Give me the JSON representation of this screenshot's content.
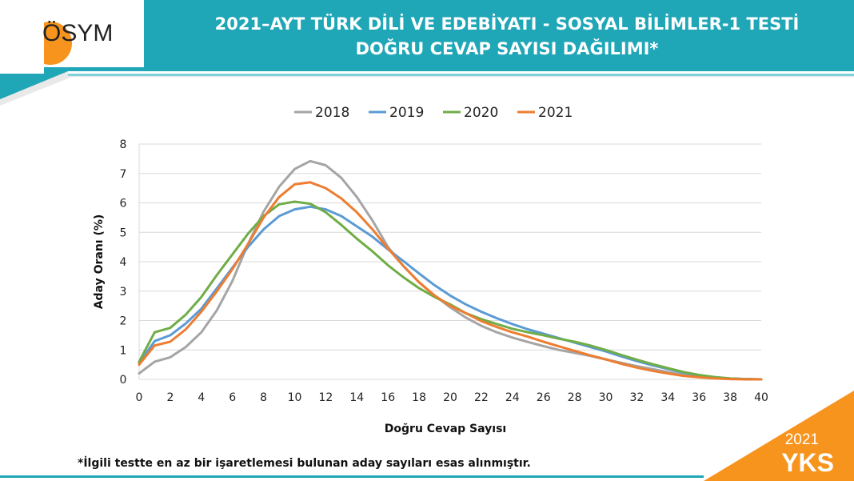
{
  "header": {
    "title_line1": "2021–AYT TÜRK DİLİ VE EDEBİYATI - SOSYAL BİLİMLER-1 TESTİ",
    "title_line2": "DOĞRU CEVAP SAYISI DAĞILIMI*",
    "logo_text": "ÖSYM"
  },
  "footnote": "*İlgili testte en az bir işaretlemesi bulunan aday sayıları esas alınmıştır.",
  "badge": {
    "year": "2021",
    "name": "YKS"
  },
  "colors": {
    "teal": "#1fa6b7",
    "orange": "#f7941d",
    "s2018": "#a5a5a5",
    "s2019": "#5b9bd5",
    "s2020": "#70ad47",
    "s2021": "#ed7d31"
  },
  "chart_data": {
    "type": "line",
    "title": "",
    "xlabel": "Doğru Cevap Sayısı",
    "ylabel": "Aday Oranı (%)",
    "xlim": [
      0,
      40
    ],
    "ylim": [
      0,
      8
    ],
    "x_ticks": [
      0,
      2,
      4,
      6,
      8,
      10,
      12,
      14,
      16,
      18,
      20,
      22,
      24,
      26,
      28,
      30,
      32,
      34,
      36,
      38,
      40
    ],
    "y_ticks": [
      0,
      1,
      2,
      3,
      4,
      5,
      6,
      7,
      8
    ],
    "grid": true,
    "legend_position": "top-center",
    "x": [
      0,
      1,
      2,
      3,
      4,
      5,
      6,
      7,
      8,
      9,
      10,
      11,
      12,
      13,
      14,
      15,
      16,
      17,
      18,
      19,
      20,
      21,
      22,
      23,
      24,
      25,
      26,
      27,
      28,
      29,
      30,
      31,
      32,
      33,
      34,
      35,
      36,
      37,
      38,
      39,
      40
    ],
    "series": [
      {
        "name": "2018",
        "color": "#a5a5a5",
        "values": [
          0.2,
          0.6,
          0.75,
          1.1,
          1.6,
          2.35,
          3.35,
          4.6,
          5.7,
          6.55,
          7.15,
          7.42,
          7.28,
          6.85,
          6.2,
          5.4,
          4.5,
          3.85,
          3.3,
          2.85,
          2.45,
          2.1,
          1.82,
          1.6,
          1.42,
          1.27,
          1.13,
          1.0,
          0.9,
          0.8,
          0.68,
          0.56,
          0.45,
          0.35,
          0.25,
          0.16,
          0.1,
          0.05,
          0.02,
          0.01,
          0.0
        ]
      },
      {
        "name": "2019",
        "color": "#5b9bd5",
        "values": [
          0.55,
          1.3,
          1.5,
          1.9,
          2.4,
          3.1,
          3.8,
          4.5,
          5.1,
          5.55,
          5.78,
          5.87,
          5.78,
          5.55,
          5.2,
          4.85,
          4.42,
          4.02,
          3.6,
          3.2,
          2.85,
          2.55,
          2.3,
          2.08,
          1.88,
          1.7,
          1.55,
          1.4,
          1.25,
          1.1,
          0.95,
          0.78,
          0.62,
          0.48,
          0.35,
          0.23,
          0.14,
          0.07,
          0.03,
          0.01,
          0.0
        ]
      },
      {
        "name": "2020",
        "color": "#70ad47",
        "values": [
          0.6,
          1.6,
          1.75,
          2.2,
          2.8,
          3.55,
          4.25,
          4.95,
          5.55,
          5.95,
          6.04,
          5.97,
          5.68,
          5.25,
          4.78,
          4.35,
          3.88,
          3.47,
          3.1,
          2.8,
          2.55,
          2.25,
          2.05,
          1.88,
          1.72,
          1.6,
          1.5,
          1.38,
          1.28,
          1.15,
          1.0,
          0.83,
          0.67,
          0.52,
          0.38,
          0.25,
          0.15,
          0.08,
          0.03,
          0.01,
          0.0
        ]
      },
      {
        "name": "2021",
        "color": "#ed7d31",
        "values": [
          0.5,
          1.15,
          1.28,
          1.7,
          2.3,
          3.0,
          3.75,
          4.6,
          5.5,
          6.2,
          6.63,
          6.7,
          6.5,
          6.15,
          5.68,
          5.1,
          4.45,
          3.85,
          3.3,
          2.85,
          2.5,
          2.25,
          1.98,
          1.78,
          1.6,
          1.45,
          1.28,
          1.12,
          0.97,
          0.82,
          0.68,
          0.53,
          0.4,
          0.29,
          0.2,
          0.12,
          0.07,
          0.03,
          0.01,
          0.0,
          0.0
        ]
      }
    ]
  }
}
